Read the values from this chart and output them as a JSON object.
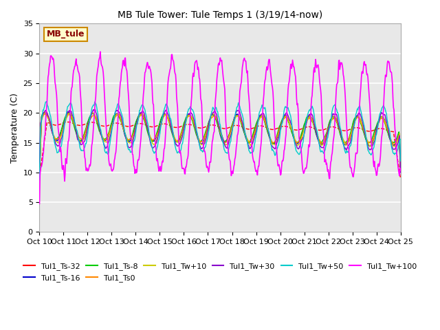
{
  "title": "MB Tule Tower: Tule Temps 1 (3/19/14-now)",
  "ylabel": "Temperature (C)",
  "ylim": [
    0,
    35
  ],
  "xlim": [
    0,
    15
  ],
  "yticks": [
    0,
    5,
    10,
    15,
    20,
    25,
    30,
    35
  ],
  "xtick_labels": [
    "Oct 10",
    "Oct 11",
    "Oct 12",
    "Oct 13",
    "Oct 14",
    "Oct 15",
    "Oct 16",
    "Oct 17",
    "Oct 18",
    "Oct 19",
    "Oct 20",
    "Oct 21",
    "Oct 22",
    "Oct 23",
    "Oct 24",
    "Oct 25"
  ],
  "axes_facecolor": "#e8e8e8",
  "grid_color": "#ffffff",
  "series": [
    {
      "label": "Tul1_Ts-32",
      "color": "#ff0000"
    },
    {
      "label": "Tul1_Ts-16",
      "color": "#0000cc"
    },
    {
      "label": "Tul1_Ts-8",
      "color": "#00cc00"
    },
    {
      "label": "Tul1_Ts0",
      "color": "#ff8800"
    },
    {
      "label": "Tul1_Tw+10",
      "color": "#cccc00"
    },
    {
      "label": "Tul1_Tw+30",
      "color": "#8800cc"
    },
    {
      "label": "Tul1_Tw+50",
      "color": "#00cccc"
    },
    {
      "label": "Tul1_Tw+100",
      "color": "#ff00ff"
    }
  ],
  "legend_box": {
    "text": "MB_tule",
    "facecolor": "#ffffcc",
    "edgecolor": "#cc8800",
    "textcolor": "#880000"
  }
}
